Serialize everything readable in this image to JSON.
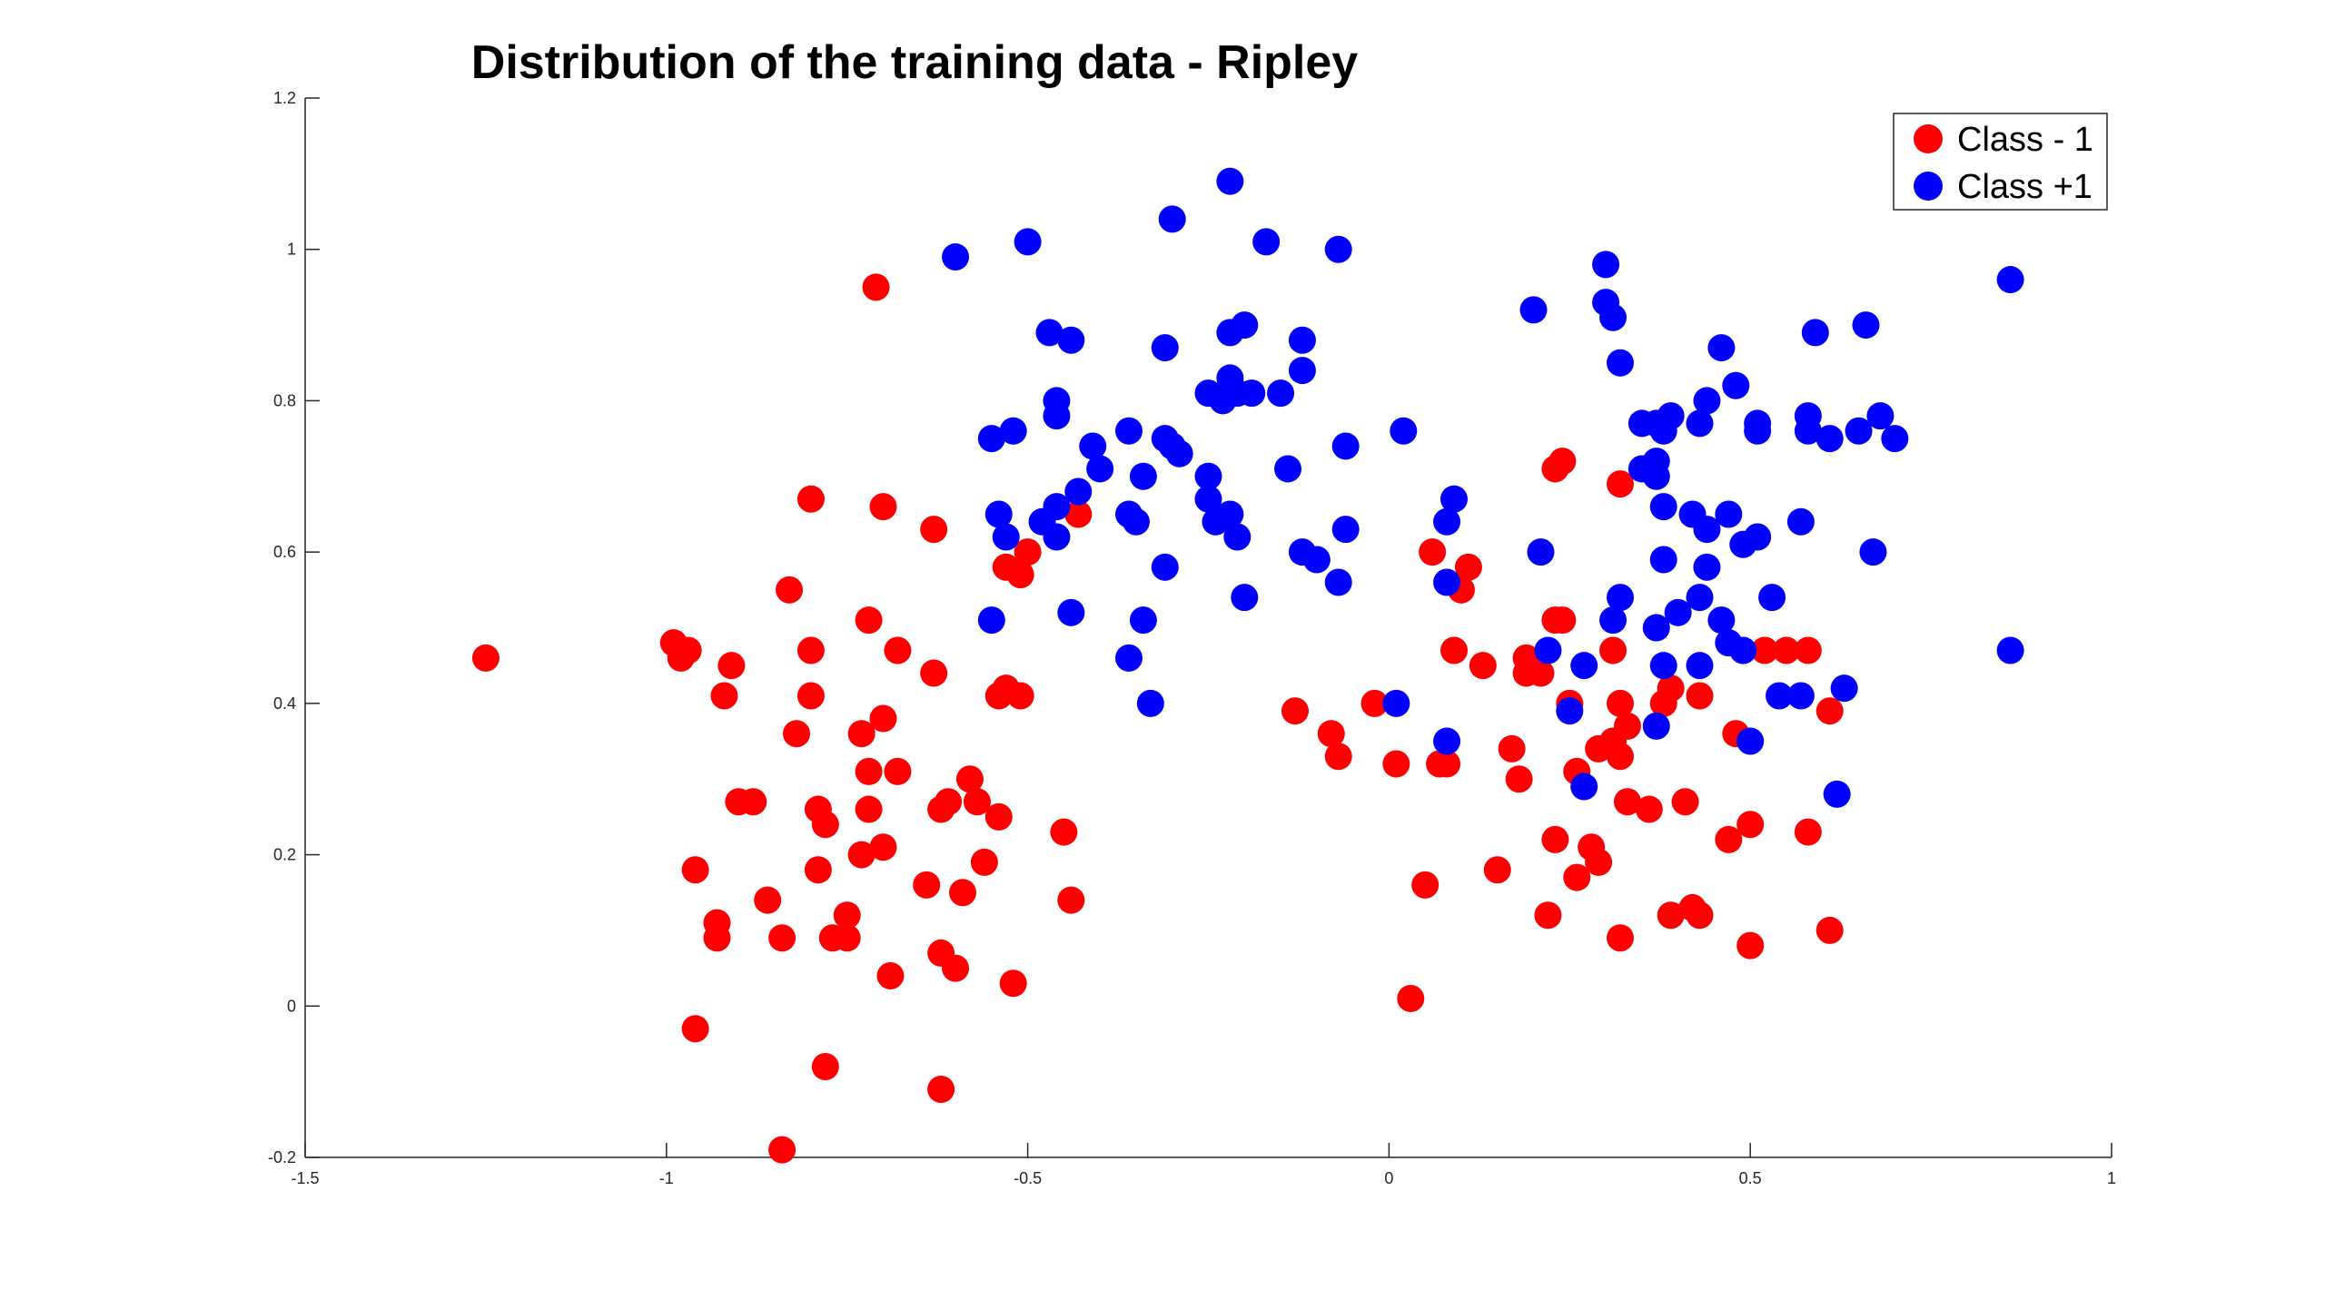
{
  "chart_data": {
    "type": "scatter",
    "title": "Distribution of the training data - Ripley",
    "xlabel": "",
    "ylabel": "",
    "xlim": [
      -1.5,
      1
    ],
    "ylim": [
      -0.2,
      1.2
    ],
    "xticks": [
      -1.5,
      -1,
      -0.5,
      0,
      0.5,
      1
    ],
    "xtick_labels": [
      "-1.5",
      "-1",
      "-0.5",
      "0",
      "0.5",
      "1"
    ],
    "yticks": [
      -0.2,
      0,
      0.2,
      0.4,
      0.6,
      0.8,
      1,
      1.2
    ],
    "ytick_labels": [
      "-0.2",
      "0",
      "0.2",
      "0.4",
      "0.6",
      "0.8",
      "1",
      "1.2"
    ],
    "grid": false,
    "legend_position": "top-right",
    "series": [
      {
        "name": "Class - 1",
        "color": "#ff0000",
        "points": [
          [
            -1.25,
            0.46
          ],
          [
            -0.99,
            0.48
          ],
          [
            -0.98,
            0.46
          ],
          [
            -0.97,
            0.47
          ],
          [
            -0.92,
            0.41
          ],
          [
            -0.91,
            0.45
          ],
          [
            -0.8,
            0.67
          ],
          [
            -0.83,
            0.55
          ],
          [
            -0.8,
            0.47
          ],
          [
            -0.8,
            0.41
          ],
          [
            -0.82,
            0.36
          ],
          [
            -0.71,
            0.95
          ],
          [
            -0.7,
            0.66
          ],
          [
            -0.72,
            0.51
          ],
          [
            -0.68,
            0.47
          ],
          [
            -0.7,
            0.38
          ],
          [
            -0.73,
            0.36
          ],
          [
            -0.72,
            0.31
          ],
          [
            -0.68,
            0.31
          ],
          [
            -0.63,
            0.63
          ],
          [
            -0.63,
            0.44
          ],
          [
            -0.9,
            0.27
          ],
          [
            -0.88,
            0.27
          ],
          [
            -0.96,
            0.18
          ],
          [
            -0.93,
            0.11
          ],
          [
            -0.93,
            0.09
          ],
          [
            -0.86,
            0.14
          ],
          [
            -0.84,
            0.09
          ],
          [
            -0.79,
            0.26
          ],
          [
            -0.78,
            0.24
          ],
          [
            -0.72,
            0.26
          ],
          [
            -0.7,
            0.21
          ],
          [
            -0.73,
            0.2
          ],
          [
            -0.79,
            0.18
          ],
          [
            -0.75,
            0.12
          ],
          [
            -0.77,
            0.09
          ],
          [
            -0.75,
            0.09
          ],
          [
            -0.69,
            0.04
          ],
          [
            -0.64,
            0.16
          ],
          [
            -0.62,
            0.26
          ],
          [
            -0.61,
            0.27
          ],
          [
            -0.58,
            0.3
          ],
          [
            -0.57,
            0.27
          ],
          [
            -0.54,
            0.25
          ],
          [
            -0.56,
            0.19
          ],
          [
            -0.59,
            0.15
          ],
          [
            -0.62,
            0.07
          ],
          [
            -0.6,
            0.05
          ],
          [
            -0.52,
            0.03
          ],
          [
            -0.96,
            -0.03
          ],
          [
            -0.78,
            -0.08
          ],
          [
            -0.62,
            -0.11
          ],
          [
            -0.84,
            -0.19
          ],
          [
            -0.53,
            0.58
          ],
          [
            -0.51,
            0.57
          ],
          [
            -0.5,
            0.6
          ],
          [
            -0.45,
            0.23
          ],
          [
            -0.44,
            0.14
          ],
          [
            -0.43,
            0.65
          ],
          [
            -0.54,
            0.41
          ],
          [
            -0.53,
            0.42
          ],
          [
            -0.51,
            0.41
          ],
          [
            -0.13,
            0.39
          ],
          [
            -0.08,
            0.36
          ],
          [
            -0.07,
            0.33
          ],
          [
            -0.02,
            0.4
          ],
          [
            0.01,
            0.32
          ],
          [
            0.05,
            0.16
          ],
          [
            0.03,
            0.01
          ],
          [
            0.06,
            0.6
          ],
          [
            0.11,
            0.58
          ],
          [
            0.1,
            0.55
          ],
          [
            0.09,
            0.47
          ],
          [
            0.13,
            0.45
          ],
          [
            0.07,
            0.32
          ],
          [
            0.08,
            0.32
          ],
          [
            0.15,
            0.18
          ],
          [
            0.17,
            0.34
          ],
          [
            0.19,
            0.46
          ],
          [
            0.19,
            0.44
          ],
          [
            0.21,
            0.44
          ],
          [
            0.18,
            0.3
          ],
          [
            0.23,
            0.71
          ],
          [
            0.24,
            0.72
          ],
          [
            0.23,
            0.51
          ],
          [
            0.24,
            0.51
          ],
          [
            0.25,
            0.4
          ],
          [
            0.26,
            0.31
          ],
          [
            0.29,
            0.34
          ],
          [
            0.31,
            0.47
          ],
          [
            0.32,
            0.69
          ],
          [
            0.32,
            0.4
          ],
          [
            0.33,
            0.37
          ],
          [
            0.32,
            0.33
          ],
          [
            0.31,
            0.35
          ],
          [
            0.33,
            0.27
          ],
          [
            0.36,
            0.26
          ],
          [
            0.23,
            0.22
          ],
          [
            0.28,
            0.21
          ],
          [
            0.29,
            0.19
          ],
          [
            0.26,
            0.17
          ],
          [
            0.22,
            0.12
          ],
          [
            0.32,
            0.09
          ],
          [
            0.38,
            0.4
          ],
          [
            0.39,
            0.42
          ],
          [
            0.41,
            0.27
          ],
          [
            0.43,
            0.41
          ],
          [
            0.39,
            0.12
          ],
          [
            0.42,
            0.13
          ],
          [
            0.43,
            0.12
          ],
          [
            0.48,
            0.36
          ],
          [
            0.47,
            0.22
          ],
          [
            0.5,
            0.24
          ],
          [
            0.5,
            0.08
          ],
          [
            0.52,
            0.47
          ],
          [
            0.55,
            0.47
          ],
          [
            0.58,
            0.47
          ],
          [
            0.61,
            0.39
          ],
          [
            0.58,
            0.23
          ],
          [
            0.61,
            0.1
          ]
        ]
      },
      {
        "name": "Class +1",
        "color": "#0000ff",
        "points": [
          [
            -0.6,
            0.99
          ],
          [
            -0.5,
            1.01
          ],
          [
            -0.3,
            1.04
          ],
          [
            -0.22,
            1.09
          ],
          [
            -0.17,
            1.01
          ],
          [
            -0.07,
            1.0
          ],
          [
            -0.47,
            0.89
          ],
          [
            -0.44,
            0.88
          ],
          [
            -0.31,
            0.87
          ],
          [
            -0.22,
            0.89
          ],
          [
            -0.2,
            0.9
          ],
          [
            -0.12,
            0.88
          ],
          [
            -0.12,
            0.84
          ],
          [
            -0.22,
            0.83
          ],
          [
            -0.25,
            0.81
          ],
          [
            -0.23,
            0.8
          ],
          [
            -0.21,
            0.81
          ],
          [
            -0.19,
            0.81
          ],
          [
            -0.15,
            0.81
          ],
          [
            -0.46,
            0.8
          ],
          [
            -0.46,
            0.78
          ],
          [
            -0.52,
            0.76
          ],
          [
            -0.55,
            0.75
          ],
          [
            -0.41,
            0.74
          ],
          [
            -0.36,
            0.76
          ],
          [
            -0.31,
            0.75
          ],
          [
            -0.3,
            0.74
          ],
          [
            -0.29,
            0.73
          ],
          [
            -0.06,
            0.74
          ],
          [
            -0.4,
            0.71
          ],
          [
            -0.34,
            0.7
          ],
          [
            -0.25,
            0.7
          ],
          [
            -0.25,
            0.67
          ],
          [
            -0.14,
            0.71
          ],
          [
            -0.54,
            0.65
          ],
          [
            -0.48,
            0.64
          ],
          [
            -0.46,
            0.66
          ],
          [
            -0.43,
            0.68
          ],
          [
            -0.36,
            0.65
          ],
          [
            -0.35,
            0.64
          ],
          [
            -0.24,
            0.64
          ],
          [
            -0.22,
            0.65
          ],
          [
            -0.21,
            0.62
          ],
          [
            -0.53,
            0.62
          ],
          [
            -0.46,
            0.62
          ],
          [
            -0.31,
            0.58
          ],
          [
            -0.12,
            0.6
          ],
          [
            -0.1,
            0.59
          ],
          [
            -0.06,
            0.63
          ],
          [
            -0.07,
            0.56
          ],
          [
            -0.2,
            0.54
          ],
          [
            -0.55,
            0.51
          ],
          [
            -0.44,
            0.52
          ],
          [
            -0.34,
            0.51
          ],
          [
            -0.36,
            0.46
          ],
          [
            -0.33,
            0.4
          ],
          [
            0.02,
            0.76
          ],
          [
            0.09,
            0.67
          ],
          [
            0.08,
            0.64
          ],
          [
            0.08,
            0.56
          ],
          [
            0.01,
            0.4
          ],
          [
            0.08,
            0.35
          ],
          [
            0.2,
            0.92
          ],
          [
            0.21,
            0.6
          ],
          [
            0.22,
            0.47
          ],
          [
            0.25,
            0.39
          ],
          [
            0.27,
            0.45
          ],
          [
            0.27,
            0.29
          ],
          [
            0.3,
            0.98
          ],
          [
            0.3,
            0.93
          ],
          [
            0.31,
            0.91
          ],
          [
            0.32,
            0.85
          ],
          [
            0.35,
            0.77
          ],
          [
            0.37,
            0.77
          ],
          [
            0.38,
            0.76
          ],
          [
            0.39,
            0.78
          ],
          [
            0.43,
            0.77
          ],
          [
            0.44,
            0.8
          ],
          [
            0.46,
            0.87
          ],
          [
            0.48,
            0.82
          ],
          [
            0.51,
            0.77
          ],
          [
            0.51,
            0.76
          ],
          [
            0.35,
            0.71
          ],
          [
            0.37,
            0.7
          ],
          [
            0.37,
            0.72
          ],
          [
            0.38,
            0.66
          ],
          [
            0.42,
            0.65
          ],
          [
            0.44,
            0.63
          ],
          [
            0.47,
            0.65
          ],
          [
            0.49,
            0.61
          ],
          [
            0.51,
            0.62
          ],
          [
            0.57,
            0.64
          ],
          [
            0.38,
            0.59
          ],
          [
            0.44,
            0.58
          ],
          [
            0.31,
            0.51
          ],
          [
            0.32,
            0.54
          ],
          [
            0.37,
            0.5
          ],
          [
            0.4,
            0.52
          ],
          [
            0.43,
            0.54
          ],
          [
            0.46,
            0.51
          ],
          [
            0.47,
            0.48
          ],
          [
            0.49,
            0.47
          ],
          [
            0.38,
            0.45
          ],
          [
            0.43,
            0.45
          ],
          [
            0.37,
            0.37
          ],
          [
            0.5,
            0.35
          ],
          [
            0.53,
            0.54
          ],
          [
            0.54,
            0.41
          ],
          [
            0.57,
            0.41
          ],
          [
            0.59,
            0.89
          ],
          [
            0.66,
            0.9
          ],
          [
            0.58,
            0.78
          ],
          [
            0.58,
            0.76
          ],
          [
            0.61,
            0.75
          ],
          [
            0.65,
            0.76
          ],
          [
            0.68,
            0.78
          ],
          [
            0.7,
            0.75
          ],
          [
            0.67,
            0.6
          ],
          [
            0.63,
            0.42
          ],
          [
            0.62,
            0.28
          ],
          [
            0.86,
            0.96
          ],
          [
            0.86,
            0.47
          ]
        ]
      }
    ]
  }
}
